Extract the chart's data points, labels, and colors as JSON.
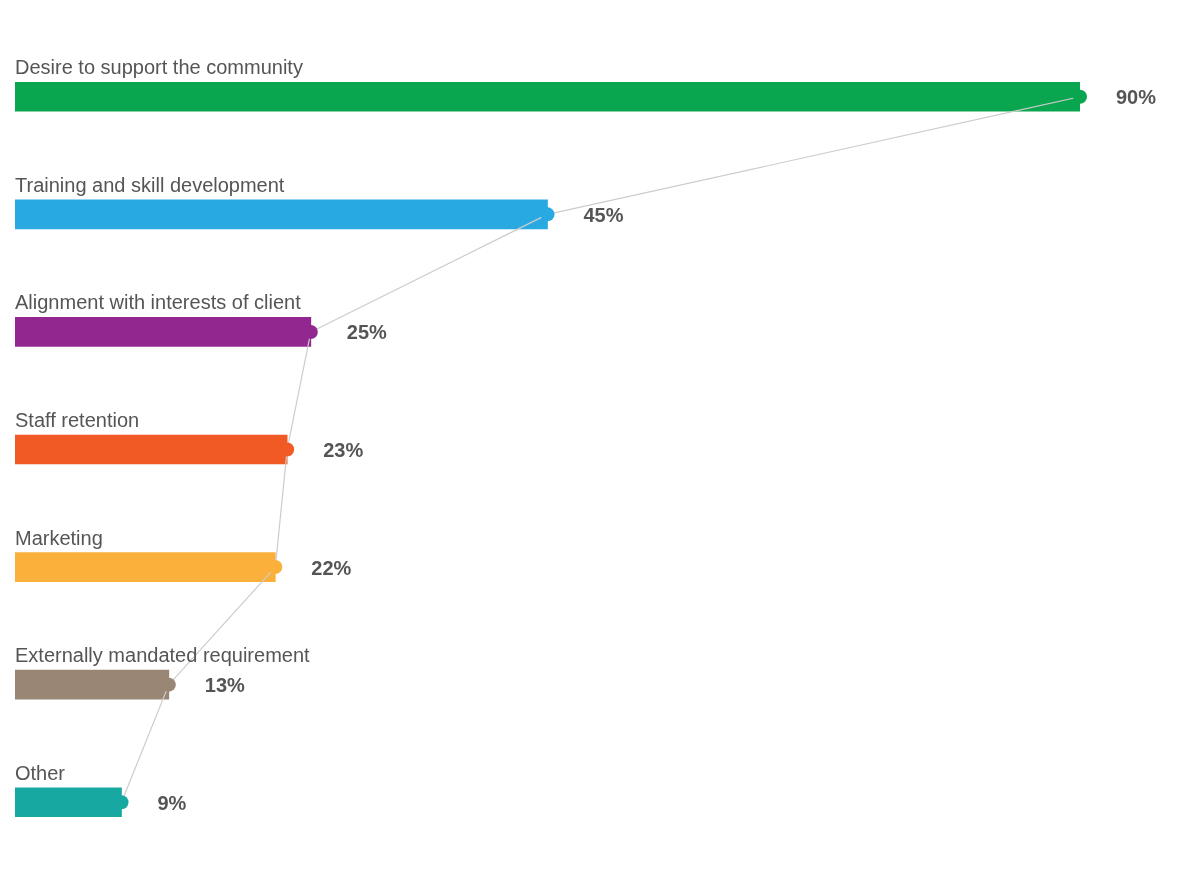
{
  "chart_data": {
    "type": "bar",
    "orientation": "horizontal",
    "categories": [
      "Desire to support the community",
      "Training and skill development",
      "Alignment with interests of client",
      "Staff retention",
      "Marketing",
      "Externally mandated requirement",
      "Other"
    ],
    "series": [
      {
        "values": [
          90,
          45,
          25,
          23,
          22,
          13,
          9
        ],
        "colors": [
          "#0aa64f",
          "#29a9e1",
          "#92278f",
          "#f15a24",
          "#fbb03b",
          "#998675",
          "#17a8a1"
        ],
        "value_labels": [
          "90%",
          "45%",
          "25%",
          "23%",
          "22%",
          "13%",
          "9%"
        ]
      },
      {
        "type": "line",
        "values": [
          90,
          45,
          25,
          23,
          22,
          13,
          9
        ],
        "color": "#cccccc",
        "colors": [
          "#0aa64f",
          "#29a9e1",
          "#92278f",
          "#f15a24",
          "#fbb03b",
          "#998675",
          "#17a8a1"
        ],
        "marker": "circle"
      }
    ],
    "legend": false
  }
}
